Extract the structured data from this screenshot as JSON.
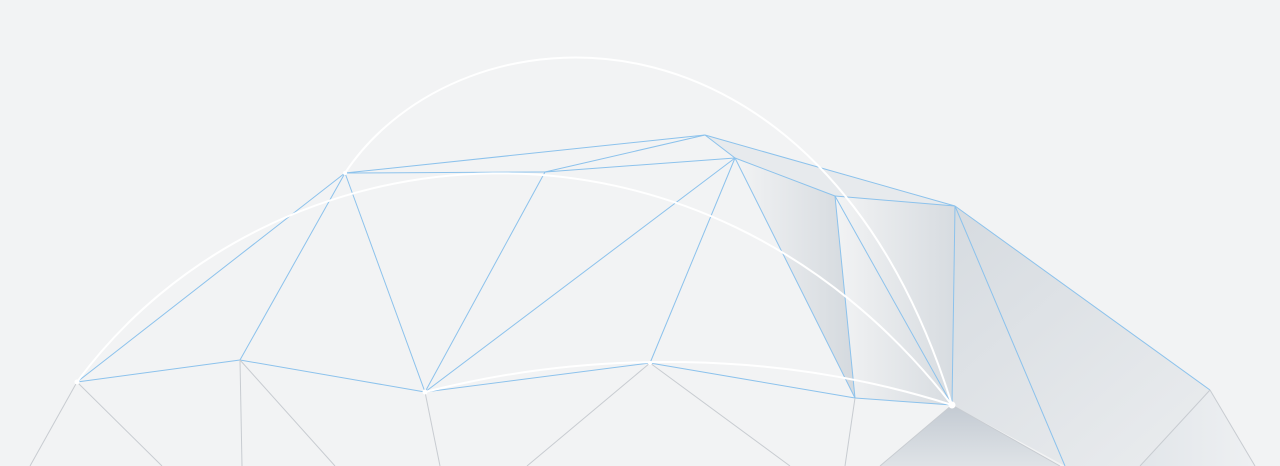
{
  "background": {
    "type": "geometric-wireframe",
    "colors": {
      "background": "#f2f3f4",
      "blue_edge": "#8cc2ec",
      "grey_edge": "#c8ccd1",
      "arc": "#ffffff",
      "shade_light": "#e9ecef",
      "shade_dark": "#c9d0d8"
    }
  }
}
